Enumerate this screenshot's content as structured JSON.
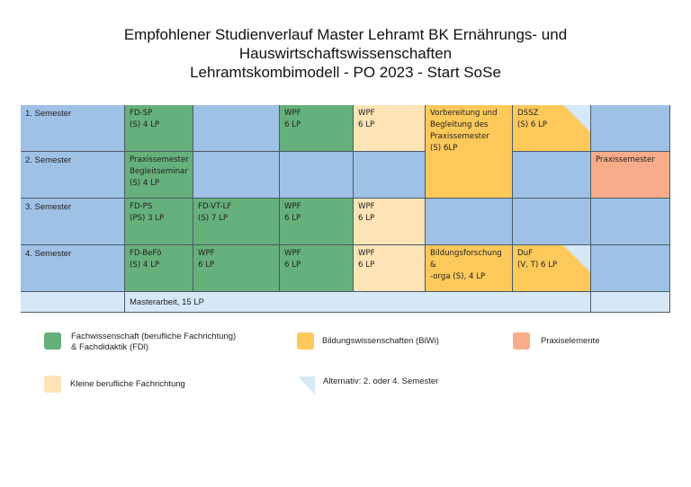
{
  "title": {
    "line1": "Empfohlener Studienverlauf Master Lehramt BK Ernährungs- und",
    "line2": "Hauswirtschaftswissenschaften",
    "line3": "Lehramtskombimodell - PO 2023 - Start SoSe"
  },
  "rows": {
    "sem1": "1. Semester",
    "sem2": "2. Semester",
    "sem3": "3. Semester",
    "sem4": "4. Semester"
  },
  "cells": {
    "r1_fdsp": "FD-SP\n(S) 4 LP",
    "r1_wpf_green": "WPF\n6 LP",
    "r1_wpf_beige": "WPF\n6 LP",
    "vorbereitung": "Vorbereitung und\nBegleitung des\nPraxissemester\n(S) 6LP",
    "r1_dssz": "DSSZ\n(S) 6 LP",
    "r2_begleit": "Praxissemester\nBegleitseminar\n(S) 4 LP",
    "r2_praxis": "Praxissemester",
    "r3_fdps": "FD-PS\n(PS) 3 LP",
    "r3_fdvtlf": "FD-VT-LF\n(S) 7 LP",
    "r3_wpf_green": "WPF\n6 LP",
    "r3_wpf_beige": "WPF\n6 LP",
    "r4_fdbefo": "FD-BeFö\n(S) 4 LP",
    "r4_wpf1": "WPF\n6 LP",
    "r4_wpf2": "WPF\n6 LP",
    "r4_wpf_beige": "WPF\n6 LP",
    "r4_bildung": "Bildungsforschung &\n-orga (S), 4 LP",
    "r4_duf": "DuF\n(V, T) 6 LP",
    "masterarbeit": "Masterarbeit, 15 LP"
  },
  "legend": {
    "fachwissenschaft": "Fachwissenschaft (berufliche Fachrichtung)\n& Fachdidaktik (FDl)",
    "biwi": "Bildungswissenschaften (BiWi)",
    "praxis": "Praxiselemente",
    "kleine": "Kleine berufliche Fachrichtung",
    "alternativ": "Alternativ: 2. oder 4. Semester"
  },
  "colors": {
    "semester_blue": "#9fc1e6",
    "fachwissenschaft_green": "#66b07b",
    "kleine_beige": "#fde4b7",
    "biwi_yellow": "#fdc95b",
    "praxis_salmon": "#f9ac89",
    "alternativ_lightblue": "#d6e7f8"
  }
}
